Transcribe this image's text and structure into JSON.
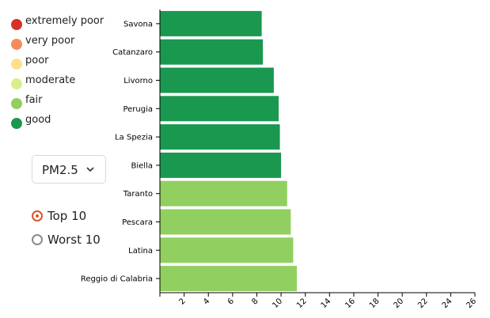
{
  "legend": [
    {
      "label": "extremely poor",
      "color": "#d73027"
    },
    {
      "label": "very poor",
      "color": "#f58c5a"
    },
    {
      "label": "poor",
      "color": "#fee08b"
    },
    {
      "label": "moderate",
      "color": "#d9ef8b"
    },
    {
      "label": "fair",
      "color": "#91cf60"
    },
    {
      "label": "good",
      "color": "#1a9850"
    }
  ],
  "controls": {
    "pollutant": "PM2.5",
    "ranking": [
      {
        "label": "Top 10",
        "selected": true
      },
      {
        "label": "Worst 10",
        "selected": false
      }
    ]
  },
  "chart_data": {
    "type": "bar",
    "orientation": "horizontal",
    "categories": [
      "Savona",
      "Catanzaro",
      "Livorno",
      "Perugia",
      "La Spezia",
      "Biella",
      "Taranto",
      "Pescara",
      "Latina",
      "Reggio di Calabria"
    ],
    "values": [
      8.4,
      8.5,
      9.4,
      9.8,
      9.9,
      10.0,
      10.5,
      10.8,
      11.0,
      11.3
    ],
    "bar_colors": [
      "#1a9850",
      "#1a9850",
      "#1a9850",
      "#1a9850",
      "#1a9850",
      "#1a9850",
      "#91cf60",
      "#91cf60",
      "#91cf60",
      "#91cf60"
    ],
    "xlim": [
      0,
      26
    ],
    "xticks": [
      2,
      4,
      6,
      8,
      10,
      12,
      14,
      16,
      18,
      20,
      22,
      24,
      26
    ],
    "grid": false
  }
}
